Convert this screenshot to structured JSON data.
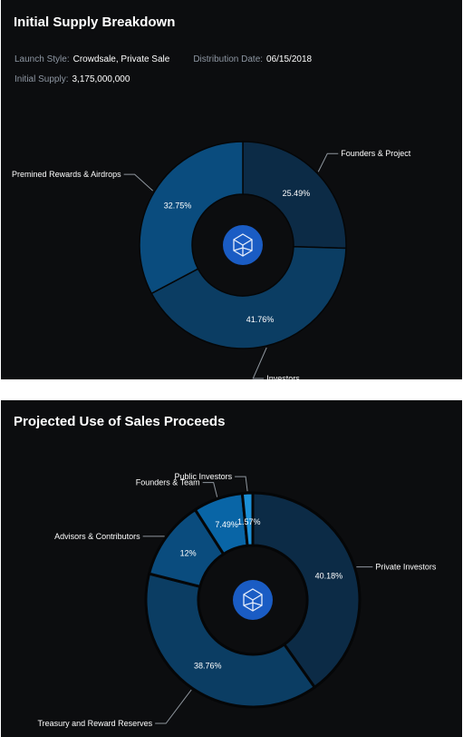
{
  "chart_data": [
    {
      "type": "pie",
      "title": "Initial Supply Breakdown",
      "categories": [
        "Founders & Project",
        "Investors",
        "Premined Rewards & Airdrops"
      ],
      "values": [
        25.49,
        41.76,
        32.75
      ],
      "value_labels": [
        "25.49%",
        "41.76%",
        "32.75%"
      ],
      "colors": [
        "#0c2b46",
        "#0b3d63",
        "#0a4c7e"
      ],
      "style": "donut"
    },
    {
      "type": "pie",
      "title": "Projected Use of Sales Proceeds",
      "categories": [
        "Private Investors",
        "Treasury and Reward Reserves",
        "Advisors & Contributors",
        "Founders & Team",
        "Public Investors"
      ],
      "values": [
        40.18,
        38.76,
        12,
        7.49,
        1.57
      ],
      "value_labels": [
        "40.18%",
        "38.76%",
        "12%",
        "7.49%",
        "1.57%"
      ],
      "colors": [
        "#0c2b46",
        "#0b3d63",
        "#0a4c7e",
        "#0965a6",
        "#1c8fd6"
      ],
      "style": "donut"
    }
  ],
  "supply_meta": {
    "launch_style_label": "Launch Style:",
    "launch_style_value": "Crowdsale, Private Sale",
    "distribution_date_label": "Distribution Date:",
    "distribution_date_value": "06/15/2018",
    "initial_supply_label": "Initial Supply:",
    "initial_supply_value": "3,175,000,000"
  },
  "center_logo_icon": "fantom-logo-icon",
  "colors": {
    "panel_bg": "#0c0d0f",
    "logo_bg": "#1a5cc4",
    "slice_border": "#050607",
    "leader_line": "#8f969e"
  }
}
